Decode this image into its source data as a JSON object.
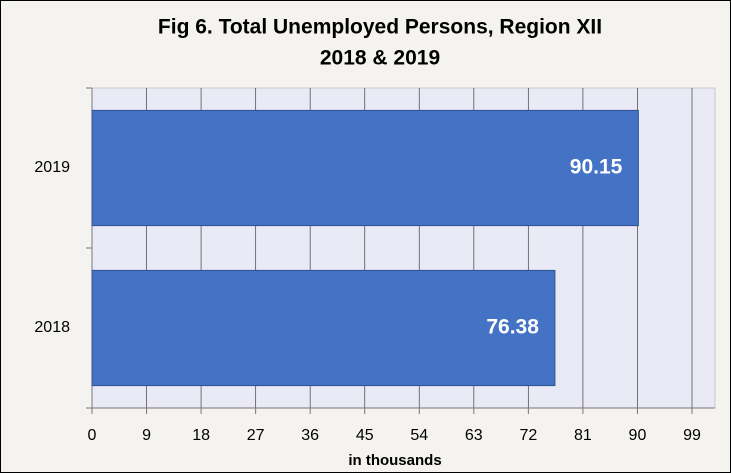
{
  "chart_data": {
    "type": "bar",
    "orientation": "horizontal",
    "title": "Fig 6.  Total Unemployed Persons, Region XII",
    "subtitle": "2018 & 2019",
    "categories": [
      "2018",
      "2019"
    ],
    "values": [
      76.38,
      90.15
    ],
    "color": "#4472c4",
    "x_label": "in thousands",
    "xlim": [
      0,
      99
    ],
    "xticks": [
      0,
      9,
      18,
      27,
      36,
      45,
      54,
      63,
      72,
      81,
      90,
      99
    ],
    "grid": true
  }
}
